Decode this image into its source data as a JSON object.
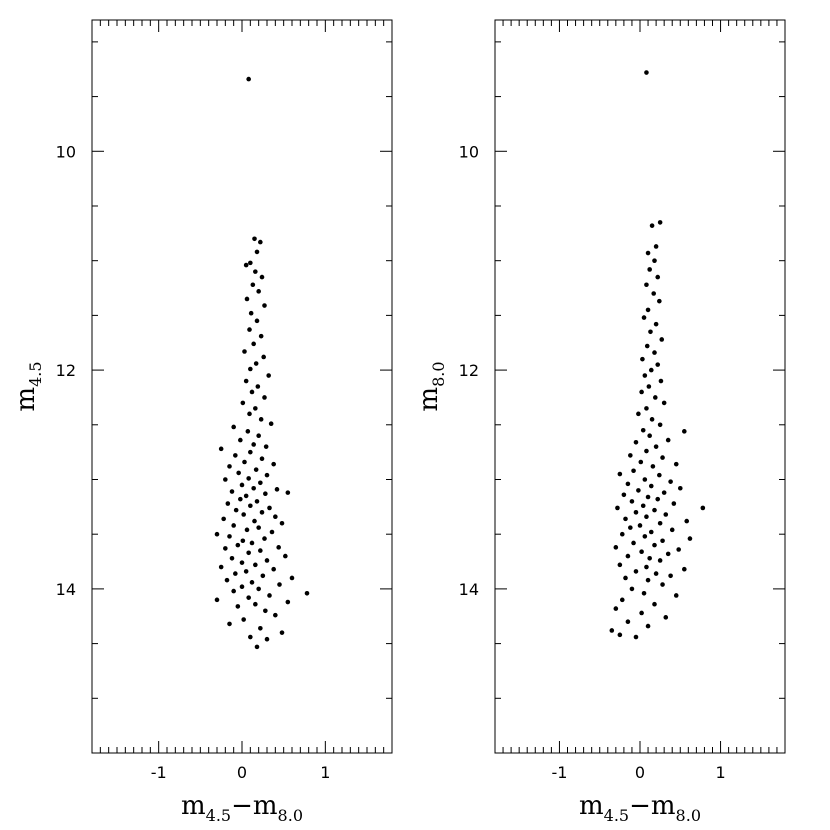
{
  "chart_data": [
    {
      "type": "scatter",
      "title": "",
      "xlabel": {
        "main": "m",
        "sub1": "4.5",
        "op": "−",
        "main2": "m",
        "sub2": "8.0"
      },
      "ylabel": {
        "main": "m",
        "sub": "4.5"
      },
      "xlim": [
        -1.8,
        1.8
      ],
      "ylim": [
        15.5,
        8.8
      ],
      "y_inverted": true,
      "xticks": [
        -1,
        0,
        1
      ],
      "xtick_labels": [
        "-1",
        "0",
        "1"
      ],
      "yticks": [
        10,
        12,
        14
      ],
      "ytick_labels": [
        "10",
        "12",
        "14"
      ],
      "grid": false,
      "legend": "none",
      "marker_color": "#000000",
      "points": [
        [
          0.08,
          9.34
        ],
        [
          0.15,
          10.8
        ],
        [
          0.22,
          10.83
        ],
        [
          0.18,
          10.92
        ],
        [
          0.1,
          11.02
        ],
        [
          0.05,
          11.04
        ],
        [
          0.16,
          11.1
        ],
        [
          0.24,
          11.15
        ],
        [
          0.13,
          11.22
        ],
        [
          0.2,
          11.28
        ],
        [
          0.06,
          11.35
        ],
        [
          0.27,
          11.41
        ],
        [
          0.11,
          11.48
        ],
        [
          0.18,
          11.55
        ],
        [
          0.09,
          11.63
        ],
        [
          0.23,
          11.69
        ],
        [
          0.14,
          11.76
        ],
        [
          0.03,
          11.83
        ],
        [
          0.26,
          11.88
        ],
        [
          0.17,
          11.94
        ],
        [
          0.1,
          11.99
        ],
        [
          0.32,
          12.05
        ],
        [
          0.05,
          12.1
        ],
        [
          0.19,
          12.15
        ],
        [
          0.12,
          12.2
        ],
        [
          0.27,
          12.25
        ],
        [
          0.01,
          12.3
        ],
        [
          0.16,
          12.35
        ],
        [
          0.09,
          12.4
        ],
        [
          0.23,
          12.45
        ],
        [
          0.35,
          12.49
        ],
        [
          -0.1,
          12.52
        ],
        [
          0.07,
          12.56
        ],
        [
          0.2,
          12.6
        ],
        [
          -0.02,
          12.64
        ],
        [
          0.14,
          12.68
        ],
        [
          0.29,
          12.7
        ],
        [
          -0.25,
          12.72
        ],
        [
          0.1,
          12.75
        ],
        [
          -0.08,
          12.78
        ],
        [
          0.24,
          12.81
        ],
        [
          0.03,
          12.84
        ],
        [
          0.38,
          12.86
        ],
        [
          -0.15,
          12.88
        ],
        [
          0.17,
          12.91
        ],
        [
          -0.04,
          12.94
        ],
        [
          0.3,
          12.96
        ],
        [
          0.08,
          12.99
        ],
        [
          -0.2,
          13.0
        ],
        [
          0.22,
          13.03
        ],
        [
          0.0,
          13.05
        ],
        [
          0.14,
          13.08
        ],
        [
          0.42,
          13.09
        ],
        [
          -0.12,
          13.11
        ],
        [
          0.28,
          13.13
        ],
        [
          0.05,
          13.15
        ],
        [
          -0.02,
          13.18
        ],
        [
          0.18,
          13.2
        ],
        [
          0.55,
          13.12
        ],
        [
          -0.17,
          13.22
        ],
        [
          0.1,
          13.24
        ],
        [
          0.33,
          13.26
        ],
        [
          -0.07,
          13.28
        ],
        [
          0.24,
          13.3
        ],
        [
          0.02,
          13.32
        ],
        [
          0.4,
          13.34
        ],
        [
          -0.22,
          13.36
        ],
        [
          0.15,
          13.38
        ],
        [
          0.48,
          13.4
        ],
        [
          -0.1,
          13.42
        ],
        [
          0.2,
          13.44
        ],
        [
          0.06,
          13.46
        ],
        [
          -0.3,
          13.5
        ],
        [
          0.36,
          13.48
        ],
        [
          -0.15,
          13.52
        ],
        [
          0.27,
          13.54
        ],
        [
          0.01,
          13.56
        ],
        [
          0.12,
          13.58
        ],
        [
          -0.05,
          13.6
        ],
        [
          0.44,
          13.62
        ],
        [
          -0.2,
          13.63
        ],
        [
          0.22,
          13.65
        ],
        [
          0.08,
          13.67
        ],
        [
          0.52,
          13.7
        ],
        [
          -0.12,
          13.72
        ],
        [
          0.3,
          13.74
        ],
        [
          0.0,
          13.76
        ],
        [
          0.16,
          13.78
        ],
        [
          -0.25,
          13.8
        ],
        [
          0.38,
          13.82
        ],
        [
          0.05,
          13.84
        ],
        [
          -0.08,
          13.86
        ],
        [
          0.25,
          13.88
        ],
        [
          0.6,
          13.9
        ],
        [
          -0.18,
          13.92
        ],
        [
          0.12,
          13.94
        ],
        [
          0.45,
          13.96
        ],
        [
          0.0,
          13.98
        ],
        [
          0.2,
          14.0
        ],
        [
          -0.1,
          14.02
        ],
        [
          0.78,
          14.04
        ],
        [
          0.33,
          14.06
        ],
        [
          0.08,
          14.08
        ],
        [
          -0.3,
          14.1
        ],
        [
          0.55,
          14.12
        ],
        [
          0.16,
          14.14
        ],
        [
          -0.05,
          14.16
        ],
        [
          0.28,
          14.2
        ],
        [
          0.4,
          14.24
        ],
        [
          0.02,
          14.28
        ],
        [
          -0.15,
          14.32
        ],
        [
          0.22,
          14.36
        ],
        [
          0.48,
          14.4
        ],
        [
          0.1,
          14.44
        ],
        [
          0.3,
          14.46
        ],
        [
          0.18,
          14.53
        ]
      ]
    },
    {
      "type": "scatter",
      "title": "",
      "xlabel": {
        "main": "m",
        "sub1": "4.5",
        "op": "−",
        "main2": "m",
        "sub2": "8.0"
      },
      "ylabel": {
        "main": "m",
        "sub": "8.0"
      },
      "xlim": [
        -1.8,
        1.8
      ],
      "ylim": [
        15.5,
        8.8
      ],
      "y_inverted": true,
      "xticks": [
        -1,
        0,
        1
      ],
      "xtick_labels": [
        "-1",
        "0",
        "1"
      ],
      "yticks": [
        10,
        12,
        14
      ],
      "ytick_labels": [
        "10",
        "12",
        "14"
      ],
      "grid": false,
      "legend": "none",
      "marker_color": "#000000",
      "points": [
        [
          0.08,
          9.28
        ],
        [
          0.25,
          10.65
        ],
        [
          0.15,
          10.68
        ],
        [
          0.2,
          10.87
        ],
        [
          0.1,
          10.93
        ],
        [
          0.18,
          11.0
        ],
        [
          0.12,
          11.08
        ],
        [
          0.22,
          11.15
        ],
        [
          0.08,
          11.22
        ],
        [
          0.17,
          11.3
        ],
        [
          0.24,
          11.37
        ],
        [
          0.1,
          11.45
        ],
        [
          0.05,
          11.52
        ],
        [
          0.2,
          11.58
        ],
        [
          0.13,
          11.65
        ],
        [
          0.27,
          11.72
        ],
        [
          0.09,
          11.78
        ],
        [
          0.18,
          11.84
        ],
        [
          0.03,
          11.9
        ],
        [
          0.22,
          11.95
        ],
        [
          0.14,
          12.0
        ],
        [
          0.06,
          12.05
        ],
        [
          0.26,
          12.1
        ],
        [
          0.11,
          12.15
        ],
        [
          0.02,
          12.2
        ],
        [
          0.19,
          12.25
        ],
        [
          0.3,
          12.3
        ],
        [
          0.08,
          12.35
        ],
        [
          -0.02,
          12.4
        ],
        [
          0.15,
          12.45
        ],
        [
          0.25,
          12.5
        ],
        [
          0.55,
          12.56
        ],
        [
          0.04,
          12.55
        ],
        [
          0.12,
          12.6
        ],
        [
          0.35,
          12.64
        ],
        [
          -0.05,
          12.66
        ],
        [
          0.2,
          12.7
        ],
        [
          0.08,
          12.74
        ],
        [
          -0.12,
          12.78
        ],
        [
          0.28,
          12.8
        ],
        [
          0.01,
          12.84
        ],
        [
          0.45,
          12.86
        ],
        [
          0.16,
          12.88
        ],
        [
          -0.08,
          12.92
        ],
        [
          -0.25,
          12.95
        ],
        [
          0.24,
          12.96
        ],
        [
          0.06,
          13.0
        ],
        [
          0.38,
          13.02
        ],
        [
          -0.15,
          13.04
        ],
        [
          0.14,
          13.06
        ],
        [
          0.5,
          13.08
        ],
        [
          -0.02,
          13.1
        ],
        [
          0.3,
          13.12
        ],
        [
          -0.2,
          13.14
        ],
        [
          0.1,
          13.16
        ],
        [
          0.22,
          13.18
        ],
        [
          -0.1,
          13.2
        ],
        [
          0.42,
          13.22
        ],
        [
          0.04,
          13.24
        ],
        [
          0.78,
          13.26
        ],
        [
          -0.28,
          13.26
        ],
        [
          0.18,
          13.28
        ],
        [
          -0.05,
          13.3
        ],
        [
          0.32,
          13.32
        ],
        [
          0.08,
          13.34
        ],
        [
          -0.18,
          13.36
        ],
        [
          0.58,
          13.38
        ],
        [
          0.25,
          13.4
        ],
        [
          0.0,
          13.42
        ],
        [
          -0.12,
          13.44
        ],
        [
          0.4,
          13.46
        ],
        [
          0.14,
          13.48
        ],
        [
          -0.22,
          13.5
        ],
        [
          0.62,
          13.54
        ],
        [
          0.06,
          13.52
        ],
        [
          0.28,
          13.56
        ],
        [
          -0.08,
          13.58
        ],
        [
          0.18,
          13.6
        ],
        [
          -0.3,
          13.62
        ],
        [
          0.48,
          13.64
        ],
        [
          0.02,
          13.66
        ],
        [
          0.35,
          13.68
        ],
        [
          -0.15,
          13.7
        ],
        [
          0.12,
          13.72
        ],
        [
          0.25,
          13.74
        ],
        [
          -0.25,
          13.78
        ],
        [
          0.08,
          13.8
        ],
        [
          0.55,
          13.82
        ],
        [
          -0.05,
          13.84
        ],
        [
          0.2,
          13.86
        ],
        [
          0.38,
          13.88
        ],
        [
          -0.18,
          13.9
        ],
        [
          0.1,
          13.92
        ],
        [
          0.28,
          13.96
        ],
        [
          -0.1,
          14.0
        ],
        [
          0.05,
          14.04
        ],
        [
          0.45,
          14.06
        ],
        [
          -0.22,
          14.1
        ],
        [
          0.18,
          14.14
        ],
        [
          -0.3,
          14.18
        ],
        [
          0.02,
          14.22
        ],
        [
          0.32,
          14.26
        ],
        [
          -0.15,
          14.3
        ],
        [
          0.1,
          14.34
        ],
        [
          -0.35,
          14.38
        ],
        [
          -0.05,
          14.44
        ],
        [
          -0.25,
          14.42
        ]
      ]
    }
  ]
}
